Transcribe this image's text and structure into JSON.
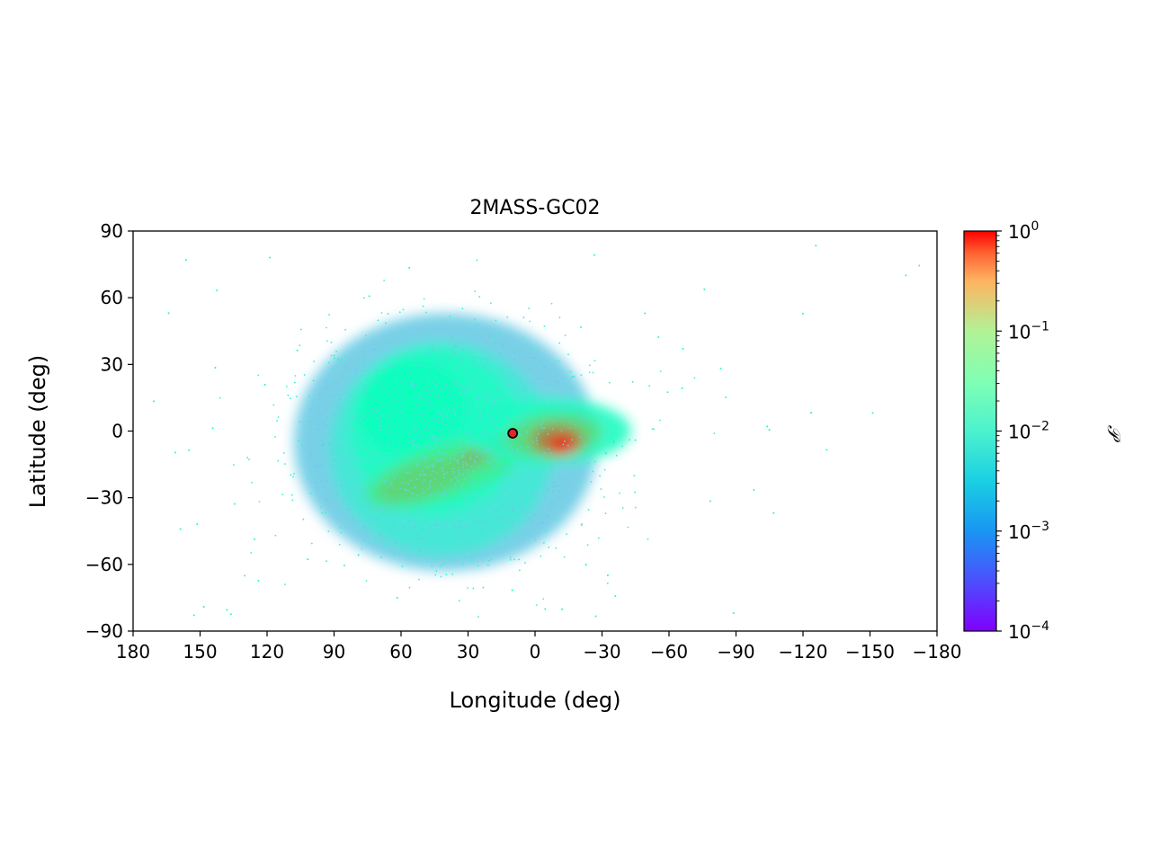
{
  "chart_data": {
    "type": "scatter",
    "title": "2MASS-GC02",
    "xlabel": "Longitude (deg)",
    "ylabel": "Latitude (deg)",
    "xlim": [
      180,
      -180
    ],
    "ylim": [
      -90,
      90
    ],
    "xticks": [
      180,
      150,
      120,
      90,
      60,
      30,
      0,
      -30,
      -60,
      -90,
      -120,
      -150,
      -180
    ],
    "xtick_labels": [
      "180",
      "150",
      "120",
      "90",
      "60",
      "30",
      "0",
      "−30",
      "−60",
      "−90",
      "−120",
      "−150",
      "−180"
    ],
    "yticks": [
      90,
      60,
      30,
      0,
      -30,
      -60,
      -90
    ],
    "ytick_labels": [
      "90",
      "60",
      "30",
      "0",
      "−30",
      "−60",
      "−90"
    ],
    "grid": false,
    "colormap": "rainbow",
    "colorbar": {
      "label": "𝒫",
      "scale": "log",
      "range": [
        0.0001,
        1
      ],
      "ticks": [
        {
          "exp": "0",
          "value": 1
        },
        {
          "exp": "−1",
          "value": 0.1
        },
        {
          "exp": "−2",
          "value": 0.01
        },
        {
          "exp": "−3",
          "value": 0.001
        },
        {
          "exp": "−4",
          "value": 0.0001
        }
      ],
      "tick_base": "10"
    },
    "marker": {
      "lon": 10.0,
      "lat": -1.0,
      "color": "#e32626",
      "edge": "#000000"
    },
    "density_regions": [
      {
        "lon": 40,
        "lat": -5,
        "rlon": 68,
        "rlat": 58,
        "angle": 0,
        "p": 0.0015
      },
      {
        "lon": 42,
        "lat": -8,
        "rlon": 50,
        "rlat": 48,
        "angle": 0,
        "p": 0.003
      },
      {
        "lon": 45,
        "lat": 0,
        "rlon": 38,
        "rlat": 38,
        "angle": 0,
        "p": 0.006
      },
      {
        "lon": 55,
        "lat": 10,
        "rlon": 25,
        "rlat": 22,
        "angle": 0,
        "p": 0.008
      },
      {
        "lon": 40,
        "lat": -18,
        "rlon": 38,
        "rlat": 12,
        "angle": -18,
        "p": 0.03
      },
      {
        "lon": 50,
        "lat": -22,
        "rlon": 22,
        "rlat": 8,
        "angle": -18,
        "p": 0.06
      },
      {
        "lon": 20,
        "lat": -8,
        "rlon": 16,
        "rlat": 5,
        "angle": -25,
        "p": 0.1
      },
      {
        "lon": -5,
        "lat": 0,
        "rlon": 38,
        "rlat": 15,
        "angle": 0,
        "p": 0.006
      },
      {
        "lon": -8,
        "lat": -2,
        "rlon": 22,
        "rlat": 10,
        "angle": -5,
        "p": 0.05
      },
      {
        "lon": -10,
        "lat": -4,
        "rlon": 12,
        "rlat": 7,
        "angle": 0,
        "p": 0.22
      },
      {
        "lon": -12,
        "lat": -6,
        "rlon": 6,
        "rlat": 4,
        "angle": 0,
        "p": 0.8
      }
    ]
  }
}
